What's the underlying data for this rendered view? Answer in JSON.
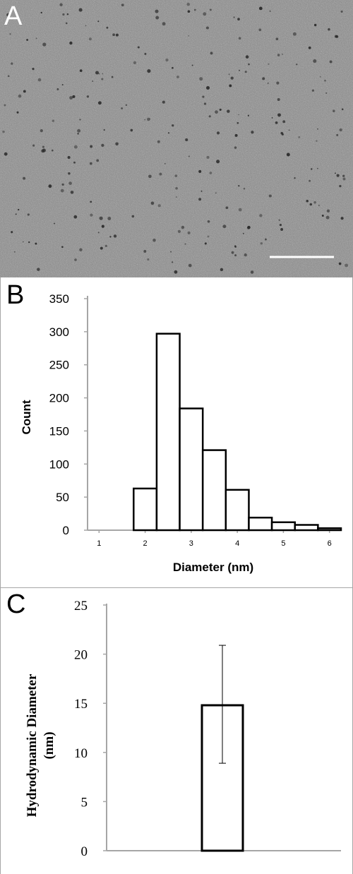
{
  "panel_a": {
    "label": "A",
    "image_desc": "tem-micrograph-nanoparticles"
  },
  "panel_b": {
    "label": "B",
    "chart_data": {
      "type": "bar",
      "title": "",
      "xlabel": "Diameter (nm)",
      "ylabel": "Count",
      "ylim": [
        0,
        350
      ],
      "yticks": [
        0,
        50,
        100,
        150,
        200,
        250,
        300,
        350
      ],
      "xlim": [
        0.75,
        6.25
      ],
      "xticks": [
        1,
        2,
        3,
        4,
        5,
        6
      ],
      "bin_width": 0.5,
      "bins": [
        {
          "x0": 1.75,
          "x1": 2.25,
          "count": 63
        },
        {
          "x0": 2.25,
          "x1": 2.75,
          "count": 297
        },
        {
          "x0": 2.75,
          "x1": 3.25,
          "count": 184
        },
        {
          "x0": 3.25,
          "x1": 3.75,
          "count": 121
        },
        {
          "x0": 3.75,
          "x1": 4.25,
          "count": 61
        },
        {
          "x0": 4.25,
          "x1": 4.75,
          "count": 19
        },
        {
          "x0": 4.75,
          "x1": 5.25,
          "count": 12
        },
        {
          "x0": 5.25,
          "x1": 5.75,
          "count": 8
        },
        {
          "x0": 5.75,
          "x1": 6.25,
          "count": 3
        }
      ]
    }
  },
  "panel_c": {
    "label": "C",
    "chart_data": {
      "type": "bar",
      "title": "",
      "ylabel": "Hydrodynamic Diameter (nm)",
      "ylabel_lines": [
        "Hydrodynamic Diameter",
        "(nm)"
      ],
      "xlabel": "",
      "ylim": [
        0,
        25
      ],
      "yticks": [
        0,
        5,
        10,
        15,
        20,
        25
      ],
      "values": [
        14.8
      ],
      "error": [
        [
          8.9,
          20.9
        ]
      ]
    }
  }
}
